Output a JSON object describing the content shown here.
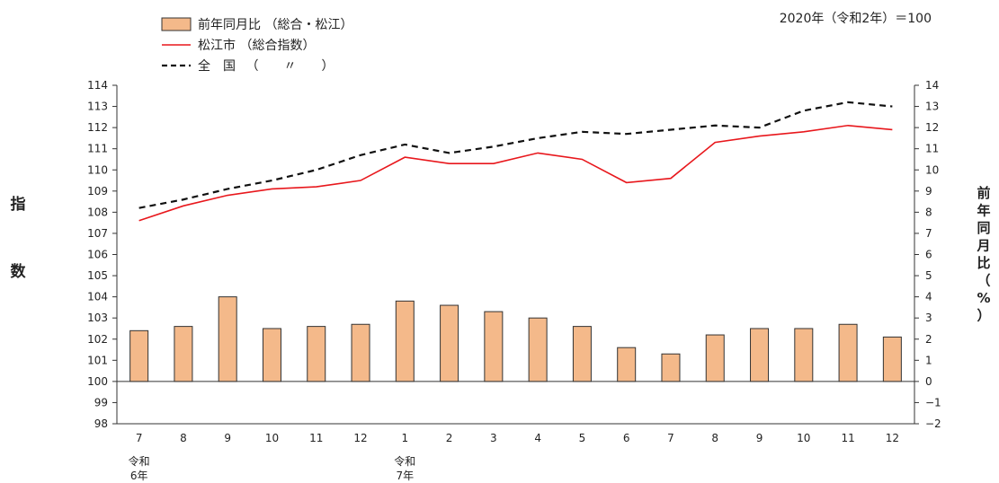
{
  "chart_data": {
    "type": "bar+line",
    "note": "2020年（令和2年）＝100",
    "ylabel_left": "指　数",
    "ylabel_right": "前年同月比（%）",
    "left_axis": {
      "min": 98,
      "max": 114,
      "ticks": [
        98,
        99,
        100,
        101,
        102,
        103,
        104,
        105,
        106,
        107,
        108,
        109,
        110,
        111,
        112,
        113,
        114
      ]
    },
    "right_axis": {
      "min": -2,
      "max": 14,
      "ticks": [
        "−2",
        "−1",
        "0",
        "1",
        "2",
        "3",
        "4",
        "5",
        "6",
        "7",
        "8",
        "9",
        "10",
        "11",
        "12",
        "13",
        "14"
      ]
    },
    "categories": [
      "7",
      "8",
      "9",
      "10",
      "11",
      "12",
      "1",
      "2",
      "3",
      "4",
      "5",
      "6",
      "7",
      "8",
      "9",
      "10",
      "11",
      "12"
    ],
    "era_labels": [
      {
        "index": 0,
        "line1": "令和",
        "line2": "6年"
      },
      {
        "index": 6,
        "line1": "令和",
        "line2": "7年"
      }
    ],
    "legend": [
      {
        "name": "前年同月比 （総合・松江）",
        "kind": "bar",
        "color": "#f4b98a"
      },
      {
        "name": "松江市 （総合指数）",
        "kind": "line",
        "color": "#e8171c"
      },
      {
        "name": "全　国 　（　　〃　　）",
        "kind": "dashed",
        "color": "#111111"
      }
    ],
    "series": [
      {
        "name": "前年同月比 （総合・松江）",
        "axis": "right",
        "type": "bar",
        "color": "#f4b98a",
        "values": [
          2.4,
          2.6,
          4.0,
          2.5,
          2.6,
          2.7,
          3.8,
          3.6,
          3.3,
          3.0,
          2.6,
          1.6,
          1.3,
          2.2,
          2.5,
          2.5,
          2.7,
          2.1
        ]
      },
      {
        "name": "松江市 （総合指数）",
        "axis": "left",
        "type": "line",
        "color": "#e8171c",
        "values": [
          107.6,
          108.3,
          108.8,
          109.1,
          109.2,
          109.5,
          110.6,
          110.3,
          110.3,
          110.8,
          110.5,
          109.4,
          109.6,
          111.3,
          111.6,
          111.8,
          112.1,
          111.9
        ]
      },
      {
        "name": "全　国 　（　　〃　　）",
        "axis": "left",
        "type": "dashed-line",
        "color": "#111111",
        "values": [
          108.2,
          108.6,
          109.1,
          109.5,
          110.0,
          110.7,
          111.2,
          110.8,
          111.1,
          111.5,
          111.8,
          111.7,
          111.9,
          112.1,
          112.0,
          112.8,
          113.2,
          113.0
        ]
      }
    ]
  }
}
